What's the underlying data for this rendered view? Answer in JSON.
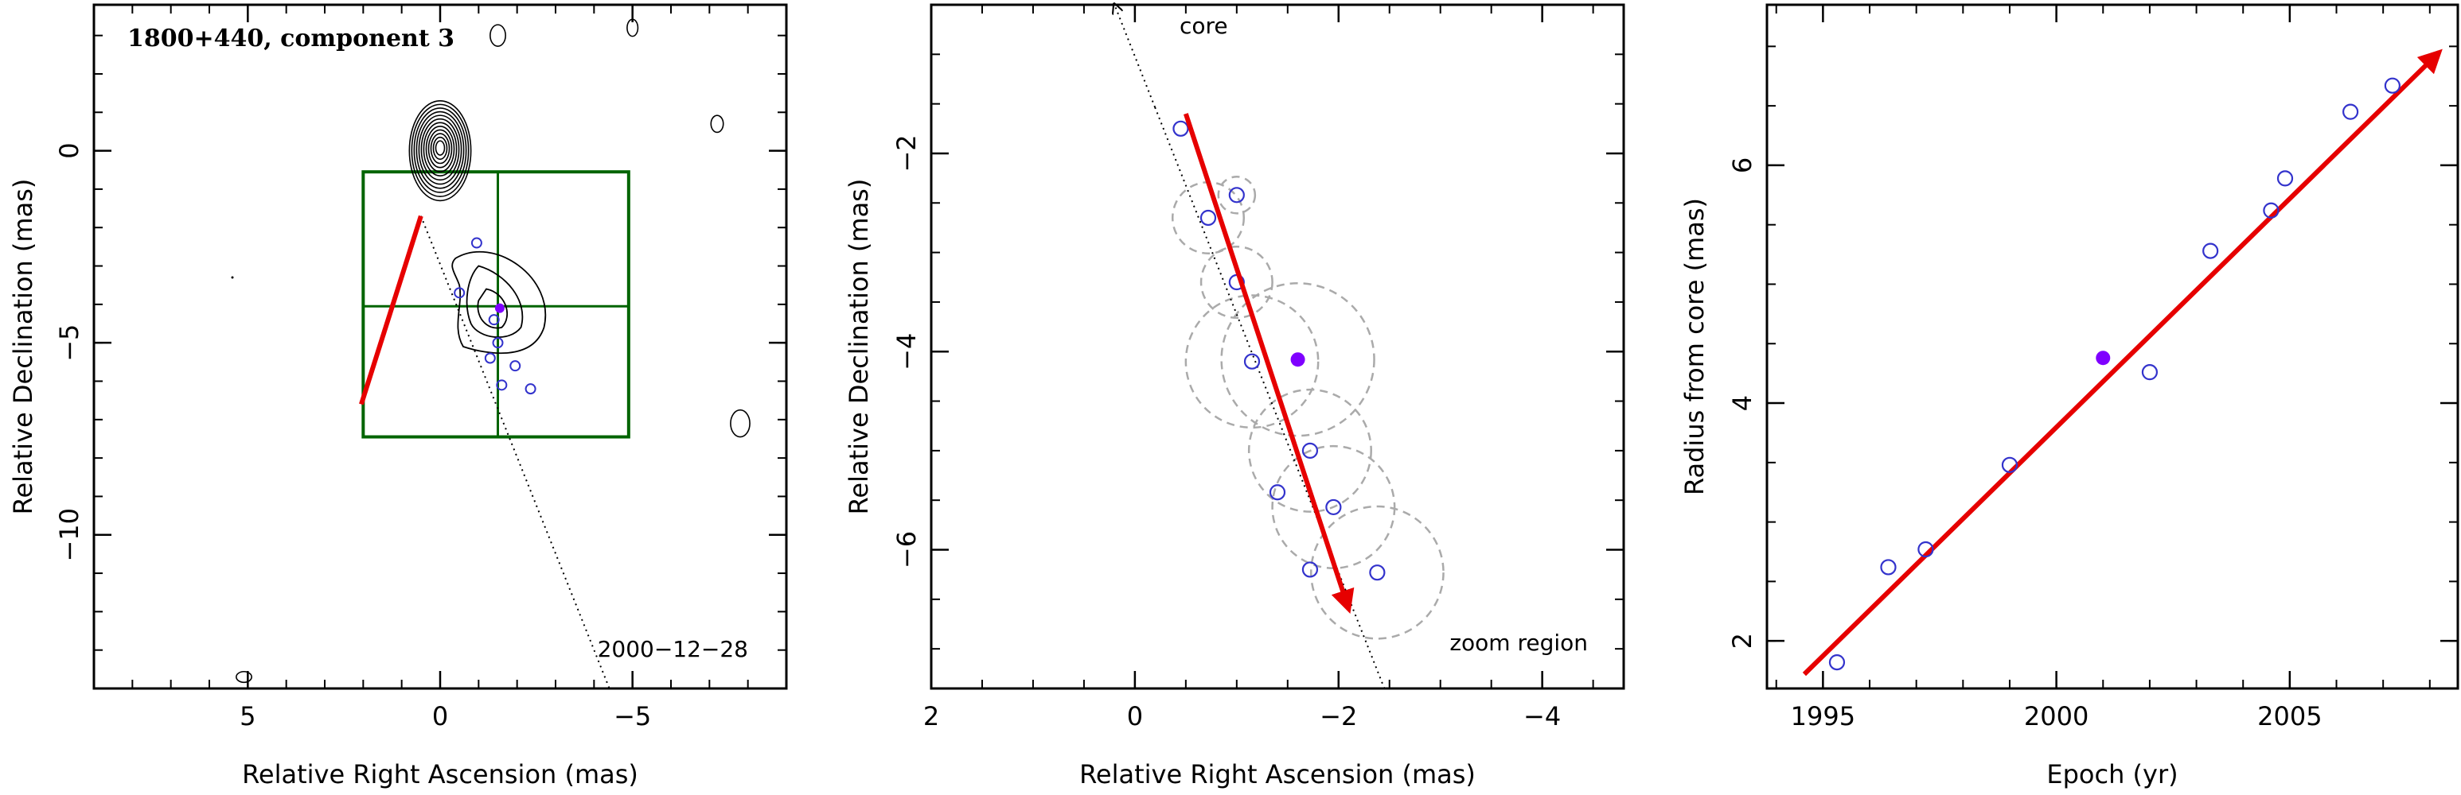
{
  "chart_data": [
    {
      "id": "map",
      "type": "contour",
      "title": "1800+440, component 3",
      "xlabel": "Relative Right Ascension (mas)",
      "ylabel": "Relative Declination (mas)",
      "xlim": [
        9,
        -9
      ],
      "ylim": [
        -14,
        3.8
      ],
      "x_ticks": [
        5,
        0,
        -5
      ],
      "y_ticks": [
        0,
        -5,
        -10
      ],
      "epoch_label": "2000−12−28",
      "grid_box": {
        "x_edges": [
          2,
          -1.5,
          -4.9
        ],
        "y_edges": [
          -0.55,
          -4.05,
          -7.45
        ]
      },
      "core_ellipse": {
        "x": 0,
        "y": 0,
        "rx": 0.8,
        "ry": 1.3
      },
      "arrow": {
        "x1": 0.5,
        "y1": -1.7,
        "x2": 2.05,
        "y2": -6.6
      },
      "dotted_line": {
        "x1": 0.5,
        "y1": -1.7,
        "x2": -4.4,
        "y2": -14
      },
      "points": [
        {
          "x": -0.95,
          "y": -2.4
        },
        {
          "x": -0.5,
          "y": -3.7
        },
        {
          "x": -1.4,
          "y": -4.4
        },
        {
          "x": -1.3,
          "y": -5.4
        },
        {
          "x": -1.6,
          "y": -6.1
        },
        {
          "x": -1.95,
          "y": -5.6
        },
        {
          "x": -2.35,
          "y": -6.2
        },
        {
          "x": -1.5,
          "y": -5.0
        }
      ],
      "filled_point": {
        "x": -1.55,
        "y": -4.1
      }
    },
    {
      "id": "zoom",
      "type": "scatter",
      "xlabel": "Relative Right Ascension (mas)",
      "ylabel": "Relative Declination (mas)",
      "xlim": [
        2,
        -4.8
      ],
      "ylim": [
        -7.4,
        -0.5
      ],
      "x_ticks": [
        2,
        0,
        -2,
        -4
      ],
      "y_ticks": [
        -2,
        -4,
        -6
      ],
      "core_label": "core",
      "zoom_label": "zoom region",
      "arrow": {
        "x1": -0.5,
        "y1": -1.6,
        "x2": -2.1,
        "y2": -6.6
      },
      "dotted_line": {
        "x1": 0.2,
        "y1": -0.5,
        "x2": -2.45,
        "y2": -7.4
      },
      "points": [
        {
          "x": -0.45,
          "y": -1.75
        },
        {
          "x": -0.72,
          "y": -2.65
        },
        {
          "x": -1.0,
          "y": -2.42
        },
        {
          "x": -1.0,
          "y": -3.3
        },
        {
          "x": -1.15,
          "y": -4.1
        },
        {
          "x": -1.72,
          "y": -5.0
        },
        {
          "x": -1.4,
          "y": -5.42
        },
        {
          "x": -1.95,
          "y": -5.57
        },
        {
          "x": -1.72,
          "y": -6.2
        },
        {
          "x": -2.38,
          "y": -6.23
        }
      ],
      "filled_point": {
        "x": -1.6,
        "y": -4.08
      },
      "error_circles": [
        {
          "x": -0.72,
          "y": -2.65,
          "r": 0.35
        },
        {
          "x": -1.0,
          "y": -2.42,
          "r": 0.18
        },
        {
          "x": -1.0,
          "y": -3.3,
          "r": 0.35
        },
        {
          "x": -1.15,
          "y": -4.1,
          "r": 0.65
        },
        {
          "x": -1.6,
          "y": -4.08,
          "r": 0.75
        },
        {
          "x": -1.72,
          "y": -5.0,
          "r": 0.6
        },
        {
          "x": -1.95,
          "y": -5.57,
          "r": 0.6
        },
        {
          "x": -2.38,
          "y": -6.23,
          "r": 0.65
        }
      ]
    },
    {
      "id": "radius",
      "type": "scatter",
      "xlabel": "Epoch (yr)",
      "ylabel": "Radius from core (mas)",
      "xlim": [
        1993.8,
        2008.6
      ],
      "ylim": [
        1.6,
        7.35
      ],
      "x_ticks": [
        1995,
        2000,
        2005
      ],
      "y_ticks": [
        2,
        4,
        6
      ],
      "fit_line": {
        "x1": 1994.6,
        "y1": 1.72,
        "x2": 2008.2,
        "y2": 6.95
      },
      "points": [
        {
          "x": 1995.3,
          "y": 1.82
        },
        {
          "x": 1996.4,
          "y": 2.62
        },
        {
          "x": 1997.2,
          "y": 2.77
        },
        {
          "x": 1999.0,
          "y": 3.48
        },
        {
          "x": 2002.0,
          "y": 4.26
        },
        {
          "x": 2003.3,
          "y": 5.28
        },
        {
          "x": 2004.6,
          "y": 5.62
        },
        {
          "x": 2004.9,
          "y": 5.89
        },
        {
          "x": 2006.3,
          "y": 6.45
        },
        {
          "x": 2007.2,
          "y": 6.67
        }
      ],
      "filled_point": {
        "x": 2001.0,
        "y": 4.38
      }
    }
  ],
  "colors": {
    "axis": "#000000",
    "arrow": "#e60000",
    "points": "#3333cc",
    "filled_point": "#7f00ff",
    "box": "#006400",
    "error_circle": "#aaaaaa"
  }
}
